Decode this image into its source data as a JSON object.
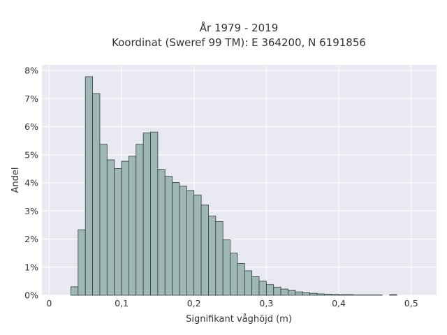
{
  "chart_data": {
    "type": "bar",
    "title": "År 1979 - 2019",
    "subtitle": "Koordinat (Sweref 99 TM): E 364200, N 6191856",
    "xlabel": "Signifikant våghöjd (m)",
    "ylabel": "Andel",
    "xlim": [
      -0.01,
      0.535
    ],
    "ylim": [
      0,
      0.082
    ],
    "x_ticks": [
      0,
      0.1,
      0.2,
      0.3,
      0.4,
      0.5
    ],
    "x_tick_labels": [
      "0",
      "0,1",
      "0,2",
      "0,3",
      "0,4",
      "0,5"
    ],
    "y_ticks": [
      0,
      0.01,
      0.02,
      0.03,
      0.04,
      0.05,
      0.06,
      0.07,
      0.08
    ],
    "y_tick_labels": [
      "0%",
      "1%",
      "2%",
      "3%",
      "4%",
      "5%",
      "6%",
      "7%",
      "8%"
    ],
    "bin_width": 0.01,
    "bin_starts": [
      0.03,
      0.04,
      0.05,
      0.06,
      0.07,
      0.08,
      0.09,
      0.1,
      0.11,
      0.12,
      0.13,
      0.14,
      0.15,
      0.16,
      0.17,
      0.18,
      0.19,
      0.2,
      0.21,
      0.22,
      0.23,
      0.24,
      0.25,
      0.26,
      0.27,
      0.28,
      0.29,
      0.3,
      0.31,
      0.32,
      0.33,
      0.34,
      0.35,
      0.36,
      0.37,
      0.38,
      0.39,
      0.4,
      0.41,
      0.42,
      0.43,
      0.44,
      0.45,
      0.47
    ],
    "values": [
      0.003,
      0.0233,
      0.0778,
      0.0718,
      0.0537,
      0.0482,
      0.0451,
      0.0477,
      0.0495,
      0.0537,
      0.0578,
      0.0581,
      0.0448,
      0.0423,
      0.0401,
      0.0388,
      0.0373,
      0.0357,
      0.0321,
      0.0282,
      0.0262,
      0.0197,
      0.015,
      0.0113,
      0.0087,
      0.0066,
      0.005,
      0.0038,
      0.0029,
      0.0022,
      0.0017,
      0.0012,
      0.0009,
      0.0007,
      0.0005,
      0.0004,
      0.0003,
      0.0002,
      0.0002,
      0.0001,
      0.0001,
      0.0001,
      0.0001,
      0.0002
    ],
    "grid": true,
    "bar_color": "#9fb7b5",
    "bar_edge_color": "#2f3b3a",
    "plot_background": "#e9e9f1",
    "grid_color": "#ffffff"
  }
}
